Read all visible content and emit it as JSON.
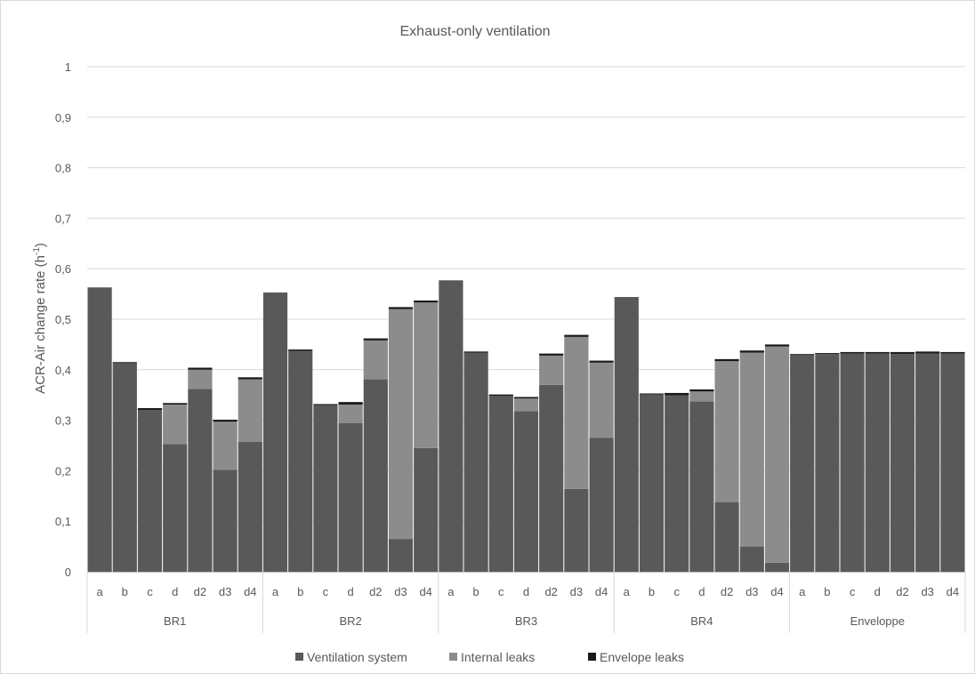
{
  "chart_data": {
    "type": "bar",
    "stacked": true,
    "title": "Exhaust-only ventilation",
    "ylabel": "ACR-Air change rate (h",
    "ylabel_sup": "-1",
    "ylabel_close": ")",
    "ylim": [
      0,
      1
    ],
    "yticks": [
      "0",
      "0,1",
      "0,2",
      "0,3",
      "0,4",
      "0,5",
      "0,6",
      "0,7",
      "0,8",
      "0,9",
      "1"
    ],
    "grid": true,
    "legend_position": "bottom",
    "groups": [
      "BR1",
      "BR2",
      "BR3",
      "BR4",
      "Enveloppe"
    ],
    "categories": [
      "a",
      "b",
      "c",
      "d",
      "d2",
      "d3",
      "d4"
    ],
    "series": [
      {
        "name": "Ventilation system",
        "color": "#595959",
        "values": [
          [
            0.563,
            0.413,
            0.32,
            0.253,
            0.362,
            0.202,
            0.257
          ],
          [
            0.553,
            0.437,
            0.33,
            0.294,
            0.381,
            0.065,
            0.245
          ],
          [
            0.577,
            0.434,
            0.348,
            0.318,
            0.37,
            0.164,
            0.265
          ],
          [
            0.544,
            0.351,
            0.349,
            0.337,
            0.138,
            0.05,
            0.018
          ],
          [
            0.429,
            0.431,
            0.432,
            0.432,
            0.431,
            0.432,
            0.432
          ]
        ]
      },
      {
        "name": "Internal leaks",
        "color": "#8c8c8c",
        "values": [
          [
            0.0,
            0.0,
            0.0,
            0.078,
            0.038,
            0.095,
            0.124
          ],
          [
            0.0,
            0.0,
            0.0,
            0.037,
            0.077,
            0.455,
            0.288
          ],
          [
            0.0,
            0.0,
            0.0,
            0.025,
            0.058,
            0.301,
            0.149
          ],
          [
            0.0,
            0.0,
            0.0,
            0.02,
            0.279,
            0.384,
            0.428
          ],
          [
            0.0,
            0.0,
            0.0,
            0.0,
            0.0,
            0.0,
            0.0
          ]
        ]
      },
      {
        "name": "Envelope leaks",
        "color": "#1a1a1a",
        "values": [
          [
            0.0,
            0.002,
            0.004,
            0.003,
            0.004,
            0.004,
            0.004
          ],
          [
            0.0,
            0.003,
            0.002,
            0.005,
            0.004,
            0.004,
            0.004
          ],
          [
            0.0,
            0.002,
            0.003,
            0.003,
            0.004,
            0.004,
            0.004
          ],
          [
            0.0,
            0.002,
            0.005,
            0.004,
            0.004,
            0.004,
            0.004
          ],
          [
            0.002,
            0.002,
            0.003,
            0.003,
            0.004,
            0.004,
            0.003
          ]
        ]
      }
    ]
  }
}
